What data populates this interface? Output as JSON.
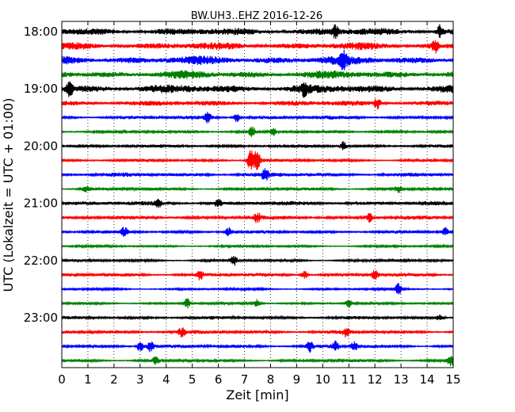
{
  "chart_data": {
    "type": "line",
    "title": "BW.UH3..EHZ 2016-12-26",
    "xlabel": "Zeit  [min]",
    "ylabel": "UTC (Lokalzeit = UTC + 01:00)",
    "xlim": [
      0,
      15
    ],
    "x_ticks": [
      "0",
      "1",
      "2",
      "3",
      "4",
      "5",
      "6",
      "7",
      "8",
      "9",
      "10",
      "11",
      "12",
      "13",
      "14",
      "15"
    ],
    "y_ticks": [
      "18:00",
      "19:00",
      "20:00",
      "21:00",
      "22:00",
      "23:00"
    ],
    "grid_x": true,
    "grid_style": "dotted",
    "line_colors": [
      "#000000",
      "#ff0000",
      "#0000ff",
      "#008000"
    ],
    "series": [
      {
        "start": "18:00",
        "amplitude": 0.6,
        "events": [
          {
            "t": 10.5,
            "amp": 1.1
          },
          {
            "t": 14.5,
            "amp": 1.1
          }
        ]
      },
      {
        "start": "18:15",
        "amplitude": 0.6,
        "events": [
          {
            "t": 14.3,
            "amp": 1.1
          }
        ]
      },
      {
        "start": "18:30",
        "amplitude": 0.7,
        "events": [
          {
            "t": 10.8,
            "amp": 1.2
          }
        ]
      },
      {
        "start": "18:45",
        "amplitude": 0.65,
        "events": []
      },
      {
        "start": "19:00",
        "amplitude": 0.7,
        "events": [
          {
            "t": 0.3,
            "amp": 1.2
          },
          {
            "t": 9.3,
            "amp": 1.0
          }
        ]
      },
      {
        "start": "19:15",
        "amplitude": 0.45,
        "events": [
          {
            "t": 12.1,
            "amp": 0.9
          }
        ]
      },
      {
        "start": "19:30",
        "amplitude": 0.3,
        "events": [
          {
            "t": 5.6,
            "amp": 0.9
          },
          {
            "t": 6.7,
            "amp": 0.8
          }
        ]
      },
      {
        "start": "19:45",
        "amplitude": 0.25,
        "events": [
          {
            "t": 7.3,
            "amp": 1.0
          },
          {
            "t": 8.1,
            "amp": 0.9
          }
        ]
      },
      {
        "start": "20:00",
        "amplitude": 0.25,
        "events": [
          {
            "t": 10.8,
            "amp": 0.8
          }
        ]
      },
      {
        "start": "20:15",
        "amplitude": 0.22,
        "events": [
          {
            "t": 7.3,
            "amp": 1.6
          },
          {
            "t": 7.5,
            "amp": 1.5
          },
          {
            "t": 7.2,
            "amp": 1.2
          }
        ]
      },
      {
        "start": "20:30",
        "amplitude": 0.35,
        "events": [
          {
            "t": 7.8,
            "amp": 1.0
          }
        ]
      },
      {
        "start": "20:45",
        "amplitude": 0.25,
        "events": [
          {
            "t": 0.9,
            "amp": 0.7
          },
          {
            "t": 12.9,
            "amp": 0.6
          }
        ]
      },
      {
        "start": "21:00",
        "amplitude": 0.35,
        "events": [
          {
            "t": 6.0,
            "amp": 0.7
          },
          {
            "t": 3.7,
            "amp": 0.6
          }
        ]
      },
      {
        "start": "21:15",
        "amplitude": 0.3,
        "events": [
          {
            "t": 7.5,
            "amp": 0.9
          },
          {
            "t": 11.8,
            "amp": 0.8
          }
        ]
      },
      {
        "start": "21:30",
        "amplitude": 0.25,
        "events": [
          {
            "t": 2.4,
            "amp": 0.8
          },
          {
            "t": 6.4,
            "amp": 0.7
          },
          {
            "t": 14.7,
            "amp": 0.7
          }
        ]
      },
      {
        "start": "21:45",
        "amplitude": 0.18,
        "events": []
      },
      {
        "start": "22:00",
        "amplitude": 0.22,
        "events": [
          {
            "t": 6.6,
            "amp": 0.8
          }
        ]
      },
      {
        "start": "22:15",
        "amplitude": 0.3,
        "events": [
          {
            "t": 5.3,
            "amp": 0.8
          },
          {
            "t": 9.3,
            "amp": 0.7
          },
          {
            "t": 12.0,
            "amp": 0.9
          }
        ]
      },
      {
        "start": "22:30",
        "amplitude": 0.18,
        "events": [
          {
            "t": 12.9,
            "amp": 1.0
          }
        ]
      },
      {
        "start": "22:45",
        "amplitude": 0.2,
        "events": [
          {
            "t": 4.8,
            "amp": 0.9
          },
          {
            "t": 7.5,
            "amp": 0.7
          },
          {
            "t": 11.0,
            "amp": 0.7
          }
        ]
      },
      {
        "start": "23:00",
        "amplitude": 0.25,
        "events": [
          {
            "t": 14.5,
            "amp": 0.6
          }
        ]
      },
      {
        "start": "23:15",
        "amplitude": 0.3,
        "events": [
          {
            "t": 4.6,
            "amp": 0.8
          },
          {
            "t": 10.9,
            "amp": 0.8
          }
        ]
      },
      {
        "start": "23:30",
        "amplitude": 0.3,
        "events": [
          {
            "t": 3.0,
            "amp": 1.0
          },
          {
            "t": 3.4,
            "amp": 1.1
          },
          {
            "t": 9.5,
            "amp": 0.9
          },
          {
            "t": 10.5,
            "amp": 0.9
          },
          {
            "t": 11.2,
            "amp": 0.9
          }
        ]
      },
      {
        "start": "23:45",
        "amplitude": 0.25,
        "events": [
          {
            "t": 3.6,
            "amp": 0.6
          },
          {
            "t": 14.9,
            "amp": 0.9
          }
        ]
      }
    ]
  }
}
